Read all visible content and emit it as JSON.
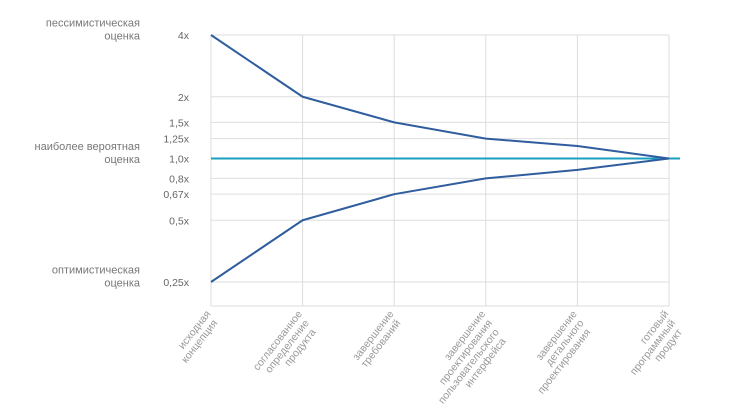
{
  "chart_data": {
    "type": "line",
    "yscale": "log",
    "ylim": [
      0.25,
      4
    ],
    "grid": true,
    "categories": [
      [
        "исходная",
        "концепция"
      ],
      [
        "согласованное",
        "определение",
        "продукта"
      ],
      [
        "завершение",
        "требований"
      ],
      [
        "завершение",
        "проектирования",
        "пользовательского",
        "интерфейса"
      ],
      [
        "завершение",
        "детального",
        "проектирования"
      ],
      [
        "готовый",
        "программный",
        "продукт"
      ]
    ],
    "x_extent": [
      0,
      5
    ],
    "yticks": [
      {
        "value": 4,
        "label": "4x"
      },
      {
        "value": 2,
        "label": "2x"
      },
      {
        "value": 1.5,
        "label": "1,5x"
      },
      {
        "value": 1.25,
        "label": "1,25x"
      },
      {
        "value": 1.0,
        "label": "1,0x"
      },
      {
        "value": 0.8,
        "label": "0,8x"
      },
      {
        "value": 0.67,
        "label": "0,67x"
      },
      {
        "value": 0.5,
        "label": "0,5x"
      },
      {
        "value": 0.25,
        "label": "0,25x"
      }
    ],
    "series": [
      {
        "x": [
          0,
          1,
          2,
          3,
          4,
          5
        ],
        "values": [
          4,
          2,
          1.5,
          1.25,
          1.15,
          1.0
        ],
        "color": "#2f5d9e"
      },
      {
        "x": [
          0,
          1,
          2,
          3,
          4,
          5
        ],
        "values": [
          0.25,
          0.5,
          0.67,
          0.8,
          0.88,
          1.0
        ],
        "color": "#2f5d9e"
      }
    ],
    "reference_line": {
      "value": 1.0,
      "color": "#1a9fc0"
    },
    "side_labels": [
      {
        "lines": [
          "пессимистическая",
          "оценка"
        ],
        "value": 4,
        "color": "#777777"
      },
      {
        "lines": [
          "наиболее вероятная",
          "оценка"
        ],
        "value": 1.0,
        "color": "#1a9fc0"
      },
      {
        "lines": [
          "оптимистическая",
          "оценка"
        ],
        "value": 0.25,
        "color": "#777777"
      }
    ]
  }
}
